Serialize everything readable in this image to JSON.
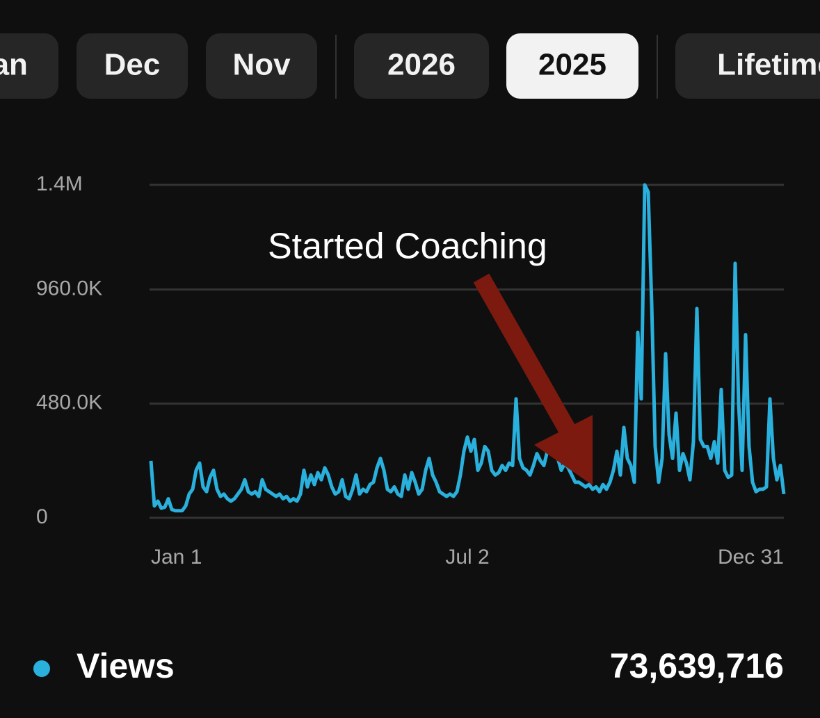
{
  "tabs": [
    {
      "label": "Jan",
      "selected": false
    },
    {
      "label": "Dec",
      "selected": false
    },
    {
      "label": "Nov",
      "selected": false
    },
    {
      "label": "2026",
      "selected": false
    },
    {
      "label": "2025",
      "selected": true
    },
    {
      "label": "Lifetime",
      "selected": false
    }
  ],
  "chart_data": {
    "type": "line",
    "annotation": "Started Coaching",
    "categories": [
      "Jan 1",
      null,
      null,
      null,
      null,
      null,
      null,
      null,
      null,
      null,
      null,
      null,
      null,
      null,
      null,
      null,
      null,
      null,
      null,
      null,
      null,
      null,
      null,
      null,
      null,
      null,
      null,
      null,
      null,
      null,
      null,
      null,
      null,
      null,
      null,
      null,
      null,
      null,
      null,
      null,
      null,
      null,
      null,
      null,
      null,
      null,
      null,
      null,
      null,
      null,
      null,
      null,
      null,
      null,
      null,
      null,
      null,
      null,
      null,
      null,
      null,
      null,
      null,
      null,
      null,
      null,
      null,
      null,
      null,
      null,
      null,
      null,
      null,
      null,
      null,
      null,
      null,
      null,
      null,
      null,
      null,
      null,
      null,
      null,
      null,
      null,
      null,
      null,
      null,
      null,
      null,
      "Jul 2",
      null,
      null,
      null,
      null,
      null,
      null,
      null,
      null,
      null,
      null,
      null,
      null,
      null,
      null,
      null,
      null,
      null,
      null,
      null,
      null,
      null,
      null,
      null,
      null,
      null,
      null,
      null,
      null,
      null,
      null,
      null,
      null,
      null,
      null,
      null,
      null,
      null,
      null,
      null,
      null,
      null,
      null,
      null,
      null,
      null,
      null,
      null,
      null,
      null,
      null,
      null,
      null,
      null,
      null,
      null,
      null,
      null,
      null,
      null,
      null,
      null,
      null,
      null,
      null,
      null,
      null,
      null,
      null,
      null,
      null,
      null,
      null,
      null,
      null,
      null,
      null,
      null,
      null,
      null,
      null,
      null,
      null,
      null,
      null,
      null,
      null,
      null,
      null,
      null,
      null,
      "Dec 31"
    ],
    "series": [
      {
        "name": "Views",
        "color": "#29b0dc",
        "total": "73,639,716",
        "values": [
          240000,
          50000,
          70000,
          40000,
          45000,
          80000,
          35000,
          30000,
          30000,
          30000,
          50000,
          100000,
          120000,
          200000,
          230000,
          130000,
          110000,
          170000,
          200000,
          120000,
          90000,
          100000,
          80000,
          70000,
          80000,
          100000,
          120000,
          160000,
          110000,
          100000,
          110000,
          90000,
          160000,
          120000,
          110000,
          100000,
          90000,
          100000,
          80000,
          90000,
          70000,
          80000,
          70000,
          100000,
          200000,
          130000,
          180000,
          140000,
          190000,
          160000,
          210000,
          180000,
          130000,
          100000,
          110000,
          160000,
          90000,
          80000,
          120000,
          180000,
          100000,
          120000,
          110000,
          140000,
          150000,
          210000,
          250000,
          200000,
          120000,
          110000,
          130000,
          100000,
          90000,
          180000,
          120000,
          190000,
          150000,
          100000,
          120000,
          200000,
          250000,
          180000,
          150000,
          110000,
          100000,
          90000,
          100000,
          90000,
          110000,
          180000,
          280000,
          340000,
          280000,
          330000,
          200000,
          230000,
          300000,
          280000,
          200000,
          180000,
          190000,
          220000,
          200000,
          230000,
          220000,
          500000,
          250000,
          210000,
          200000,
          180000,
          220000,
          270000,
          240000,
          220000,
          280000,
          320000,
          270000,
          250000,
          200000,
          230000,
          210000,
          180000,
          150000,
          150000,
          140000,
          130000,
          140000,
          120000,
          130000,
          110000,
          140000,
          120000,
          150000,
          200000,
          280000,
          180000,
          380000,
          250000,
          220000,
          150000,
          780000,
          500000,
          1400000,
          1370000,
          900000,
          300000,
          150000,
          250000,
          690000,
          350000,
          250000,
          440000,
          200000,
          270000,
          230000,
          160000,
          320000,
          880000,
          330000,
          300000,
          300000,
          250000,
          320000,
          230000,
          540000,
          200000,
          170000,
          180000,
          1070000,
          480000,
          200000,
          770000,
          300000,
          150000,
          110000,
          120000,
          120000,
          130000,
          500000,
          250000,
          160000,
          220000,
          100000
        ]
      }
    ],
    "ylim": [
      0,
      1400000
    ],
    "yticks": [
      0,
      {
        "value": 480000,
        "label": "480.0K"
      },
      {
        "value": 960000,
        "label": "960.0K"
      },
      {
        "value": 1400000,
        "label": "1.4M"
      }
    ],
    "grid": true
  }
}
